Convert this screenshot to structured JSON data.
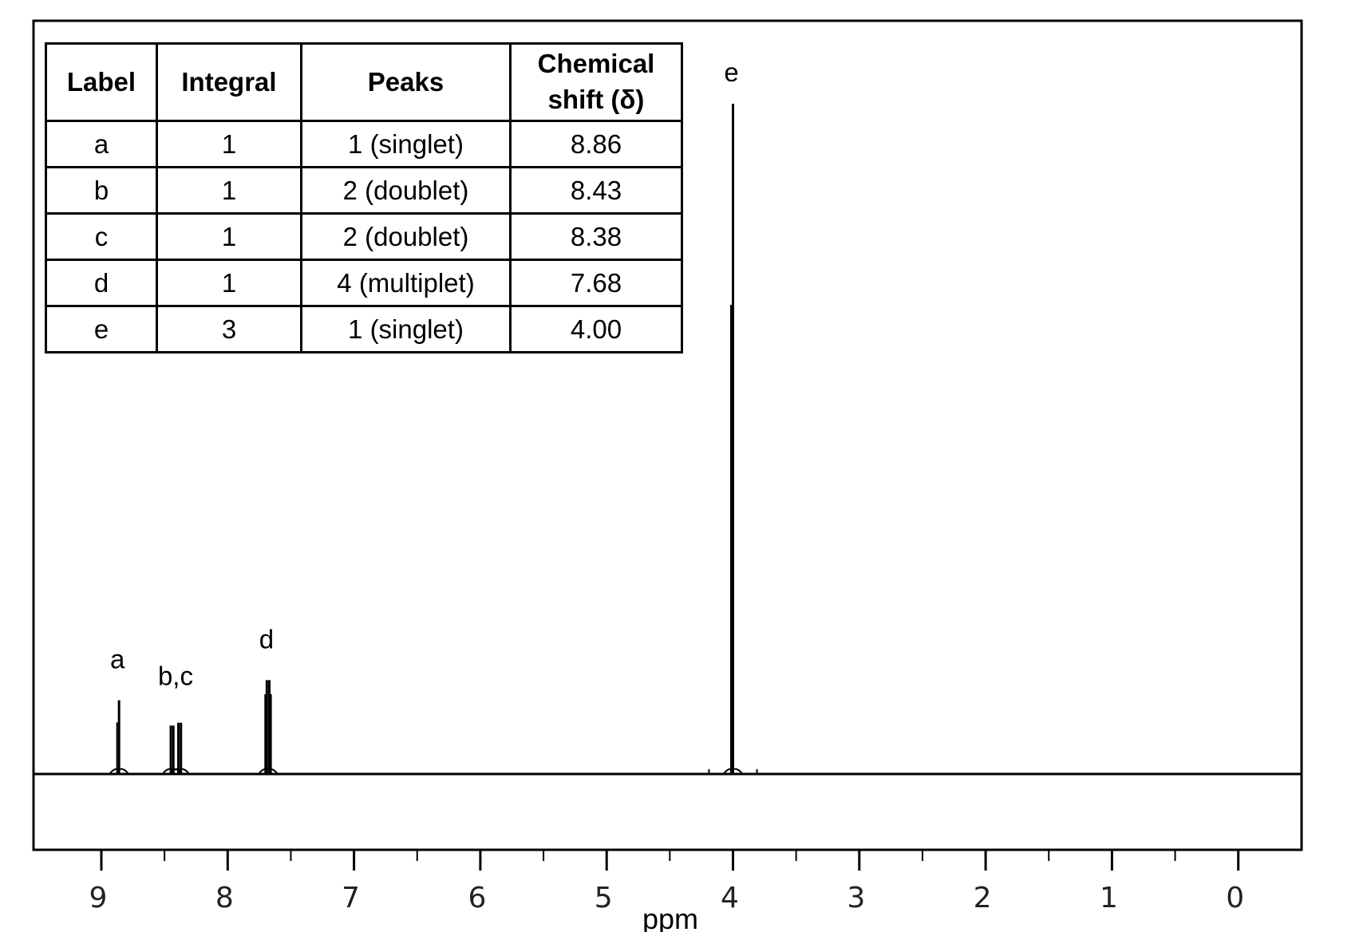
{
  "chart_data": {
    "type": "nmr-spectrum",
    "xlabel": "ppm",
    "xlim": [
      9.6,
      -0.5
    ],
    "x_reversed": true,
    "major_ticks": [
      9,
      8,
      7,
      6,
      5,
      4,
      3,
      2,
      1,
      0
    ],
    "minor_ticks": [
      8.5,
      7.5,
      6.5,
      5.5,
      4.5,
      3.5,
      2.5,
      1.5,
      0.5
    ],
    "peaks": [
      {
        "label": "a",
        "integral": 1,
        "peaks": "1 (singlet)",
        "shift": 8.86,
        "lines": [
          8.86
        ],
        "height": 0.11
      },
      {
        "label": "b",
        "integral": 1,
        "peaks": "2 (doublet)",
        "shift": 8.43,
        "lines": [
          8.45,
          8.43
        ],
        "height": 0.085
      },
      {
        "label": "c",
        "integral": 1,
        "peaks": "2 (doublet)",
        "shift": 8.38,
        "lines": [
          8.39,
          8.37
        ],
        "height": 0.09
      },
      {
        "label": "d",
        "integral": 1,
        "peaks": "4 (multiplet)",
        "shift": 7.68,
        "lines": [
          7.7,
          7.69,
          7.67,
          7.66
        ],
        "height": 0.14
      },
      {
        "label": "e",
        "integral": 3,
        "peaks": "1 (singlet)",
        "shift": 4.0,
        "lines": [
          4.0
        ],
        "height": 1.0
      }
    ],
    "peak_labels": [
      {
        "text": "a",
        "x": 8.86
      },
      {
        "text": "b,c",
        "x": 8.4
      },
      {
        "text": "d",
        "x": 7.68
      },
      {
        "text": "e",
        "x": 4.0
      }
    ]
  },
  "table": {
    "headers": [
      "Label",
      "Integral",
      "Peaks",
      "Chemical shift (δ)"
    ],
    "rows": [
      [
        "a",
        "1",
        "1 (singlet)",
        "8.86"
      ],
      [
        "b",
        "1",
        "2 (doublet)",
        "8.43"
      ],
      [
        "c",
        "1",
        "2 (doublet)",
        "8.38"
      ],
      [
        "d",
        "1",
        "4 (multiplet)",
        "7.68"
      ],
      [
        "e",
        "3",
        "1 (singlet)",
        "4.00"
      ]
    ]
  }
}
